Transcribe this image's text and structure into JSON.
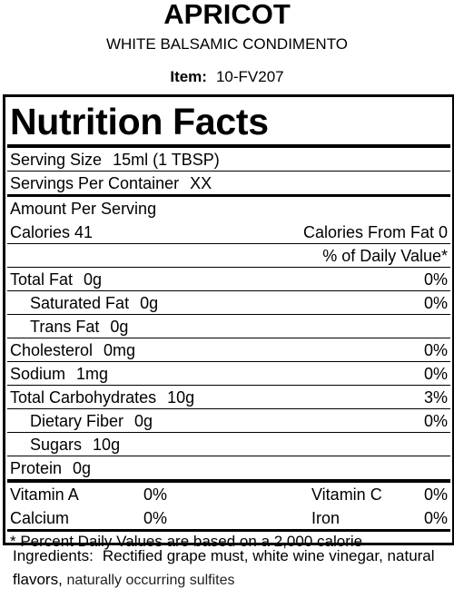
{
  "header": {
    "title": "APRICOT",
    "subtitle": "WHITE BALSAMIC CONDIMENTO",
    "item_label": "Item:",
    "item_value": "10-FV207"
  },
  "label": {
    "title": "Nutrition Facts",
    "serving_size": {
      "label": "Serving Size",
      "value": "15ml (1 TBSP)"
    },
    "servings_per_container": {
      "label": "Servings Per Container",
      "value": "XX"
    },
    "amount_per_serving": "Amount Per Serving",
    "calories": "Calories 41",
    "calories_from_fat": "Calories From Fat 0",
    "daily_value_header": "% of Daily Value*",
    "nutrients": [
      {
        "name": "Total Fat",
        "amount": "0g",
        "dv": "0%",
        "sub": [
          {
            "name": "Saturated Fat",
            "amount": "0g",
            "dv": "0%"
          },
          {
            "name": "Trans Fat",
            "amount": "0g"
          }
        ]
      },
      {
        "name": "Cholesterol",
        "amount": "0mg",
        "dv": "0%"
      },
      {
        "name": "Sodium",
        "amount": "1mg",
        "dv": "0%"
      },
      {
        "name": "Total Carbohydrates",
        "amount": "10g",
        "dv": "3%",
        "sub": [
          {
            "name": "Dietary Fiber",
            "amount": "0g",
            "dv": "0%"
          },
          {
            "name": "Sugars",
            "amount": "10g"
          }
        ]
      },
      {
        "name": "Protein",
        "amount": "0g"
      }
    ],
    "vitamins": [
      [
        {
          "name": "Vitamin A",
          "dv": "0%"
        },
        {
          "name": "Vitamin C",
          "dv": "0%"
        }
      ],
      [
        {
          "name": "Calcium",
          "dv": "0%"
        },
        {
          "name": "Iron",
          "dv": "0%"
        }
      ]
    ],
    "footnote": "* Percent Daily Values are based on a 2,000 calorie"
  },
  "ingredients": {
    "label": "Ingredients:",
    "text": "Rectified grape must, white wine vinegar, natural flavors,",
    "extra": "naturally occurring sulfites"
  }
}
